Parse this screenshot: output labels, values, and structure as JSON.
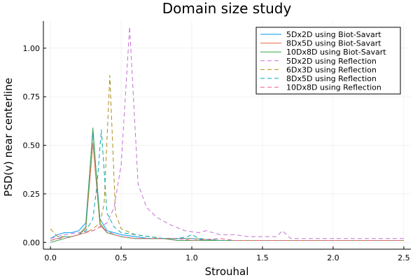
{
  "chart_data": {
    "type": "line",
    "title": "Domain size study",
    "xlabel": "Strouhal",
    "ylabel": "PSD(v) near centerline",
    "xlim": [
      -0.05,
      2.55
    ],
    "ylim": [
      -0.035,
      1.14
    ],
    "xticks": [
      0.0,
      0.5,
      1.0,
      1.5,
      2.0,
      2.5
    ],
    "xtick_labels": [
      "0.0",
      "0.5",
      "1.0",
      "1.5",
      "2.0",
      "2.5"
    ],
    "yticks": [
      0.0,
      0.25,
      0.5,
      0.75,
      1.0
    ],
    "ytick_labels": [
      "0.00",
      "0.25",
      "0.50",
      "0.75",
      "1.00"
    ],
    "grid": true,
    "legend_position": "top-right",
    "series": [
      {
        "name": "5Dx2D using Biot-Savart",
        "color": "#009af9",
        "dash": "solid",
        "points": [
          [
            0.0,
            0.02
          ],
          [
            0.05,
            0.04
          ],
          [
            0.1,
            0.05
          ],
          [
            0.15,
            0.05
          ],
          [
            0.2,
            0.06
          ],
          [
            0.25,
            0.1
          ],
          [
            0.3,
            0.57
          ],
          [
            0.35,
            0.12
          ],
          [
            0.4,
            0.06
          ],
          [
            0.45,
            0.05
          ],
          [
            0.5,
            0.04
          ],
          [
            0.6,
            0.03
          ],
          [
            0.7,
            0.02
          ],
          [
            0.8,
            0.02
          ],
          [
            0.9,
            0.02
          ],
          [
            1.0,
            0.02
          ],
          [
            1.2,
            0.01
          ],
          [
            1.4,
            0.01
          ],
          [
            1.6,
            0.01
          ],
          [
            1.8,
            0.01
          ],
          [
            2.0,
            0.01
          ],
          [
            2.2,
            0.01
          ],
          [
            2.5,
            0.01
          ]
        ]
      },
      {
        "name": "8Dx5D using Biot-Savart",
        "color": "#e26f46",
        "dash": "solid",
        "points": [
          [
            0.0,
            0.01
          ],
          [
            0.05,
            0.02
          ],
          [
            0.1,
            0.03
          ],
          [
            0.15,
            0.03
          ],
          [
            0.2,
            0.04
          ],
          [
            0.25,
            0.07
          ],
          [
            0.3,
            0.51
          ],
          [
            0.35,
            0.09
          ],
          [
            0.4,
            0.05
          ],
          [
            0.45,
            0.04
          ],
          [
            0.5,
            0.03
          ],
          [
            0.6,
            0.02
          ],
          [
            0.7,
            0.02
          ],
          [
            0.8,
            0.02
          ],
          [
            0.9,
            0.01
          ],
          [
            1.0,
            0.01
          ],
          [
            1.2,
            0.01
          ],
          [
            1.4,
            0.01
          ],
          [
            1.6,
            0.01
          ],
          [
            1.8,
            0.01
          ],
          [
            2.0,
            0.01
          ],
          [
            2.2,
            0.01
          ],
          [
            2.5,
            0.01
          ]
        ]
      },
      {
        "name": "10Dx8D using Biot-Savart",
        "color": "#3da44d",
        "dash": "solid",
        "points": [
          [
            0.0,
            0.0
          ],
          [
            0.05,
            0.01
          ],
          [
            0.1,
            0.02
          ],
          [
            0.15,
            0.03
          ],
          [
            0.2,
            0.04
          ],
          [
            0.25,
            0.08
          ],
          [
            0.3,
            0.59
          ],
          [
            0.35,
            0.1
          ],
          [
            0.4,
            0.05
          ],
          [
            0.45,
            0.04
          ],
          [
            0.5,
            0.03
          ],
          [
            0.6,
            0.02
          ],
          [
            0.7,
            0.02
          ],
          [
            0.8,
            0.02
          ],
          [
            0.9,
            0.01
          ],
          [
            1.0,
            0.01
          ],
          [
            1.2,
            0.01
          ],
          [
            1.4,
            0.01
          ],
          [
            1.6,
            0.01
          ],
          [
            1.8,
            0.01
          ],
          [
            2.0,
            0.01
          ],
          [
            2.2,
            0.01
          ],
          [
            2.5,
            0.01
          ]
        ]
      },
      {
        "name": "5Dx2D using Reflection",
        "color": "#c271d2",
        "dash": "dashed",
        "points": [
          [
            0.0,
            0.02
          ],
          [
            0.05,
            0.03
          ],
          [
            0.1,
            0.04
          ],
          [
            0.2,
            0.05
          ],
          [
            0.3,
            0.06
          ],
          [
            0.4,
            0.1
          ],
          [
            0.45,
            0.18
          ],
          [
            0.5,
            0.4
          ],
          [
            0.56,
            1.11
          ],
          [
            0.62,
            0.3
          ],
          [
            0.68,
            0.18
          ],
          [
            0.75,
            0.13
          ],
          [
            0.85,
            0.09
          ],
          [
            0.95,
            0.06
          ],
          [
            1.05,
            0.05
          ],
          [
            1.1,
            0.06
          ],
          [
            1.2,
            0.04
          ],
          [
            1.3,
            0.04
          ],
          [
            1.4,
            0.03
          ],
          [
            1.5,
            0.03
          ],
          [
            1.6,
            0.03
          ],
          [
            1.64,
            0.06
          ],
          [
            1.7,
            0.02
          ],
          [
            1.8,
            0.02
          ],
          [
            2.0,
            0.02
          ],
          [
            2.2,
            0.02
          ],
          [
            2.5,
            0.02
          ]
        ]
      },
      {
        "name": "6Dx3D using Reflection",
        "color": "#ac8d18",
        "dash": "dashed",
        "points": [
          [
            0.0,
            0.07
          ],
          [
            0.05,
            0.03
          ],
          [
            0.1,
            0.03
          ],
          [
            0.15,
            0.03
          ],
          [
            0.2,
            0.04
          ],
          [
            0.25,
            0.05
          ],
          [
            0.3,
            0.07
          ],
          [
            0.35,
            0.1
          ],
          [
            0.38,
            0.2
          ],
          [
            0.42,
            0.86
          ],
          [
            0.46,
            0.15
          ],
          [
            0.5,
            0.07
          ],
          [
            0.6,
            0.04
          ],
          [
            0.7,
            0.03
          ],
          [
            0.8,
            0.02
          ],
          [
            0.9,
            0.02
          ],
          [
            1.0,
            0.02
          ],
          [
            1.2,
            0.01
          ],
          [
            1.4,
            0.01
          ],
          [
            1.6,
            0.01
          ],
          [
            1.8,
            0.01
          ],
          [
            2.0,
            0.01
          ],
          [
            2.2,
            0.01
          ],
          [
            2.5,
            0.01
          ]
        ]
      },
      {
        "name": "8Dx5D using Reflection",
        "color": "#00a9ad",
        "dash": "dashed",
        "points": [
          [
            0.0,
            0.01
          ],
          [
            0.05,
            0.02
          ],
          [
            0.1,
            0.03
          ],
          [
            0.15,
            0.03
          ],
          [
            0.2,
            0.04
          ],
          [
            0.25,
            0.06
          ],
          [
            0.3,
            0.12
          ],
          [
            0.33,
            0.3
          ],
          [
            0.36,
            0.58
          ],
          [
            0.4,
            0.15
          ],
          [
            0.45,
            0.08
          ],
          [
            0.5,
            0.05
          ],
          [
            0.6,
            0.04
          ],
          [
            0.7,
            0.03
          ],
          [
            0.8,
            0.02
          ],
          [
            0.9,
            0.02
          ],
          [
            0.97,
            0.03
          ],
          [
            1.0,
            0.04
          ],
          [
            1.05,
            0.02
          ],
          [
            1.2,
            0.01
          ],
          [
            1.4,
            0.01
          ],
          [
            1.6,
            0.01
          ],
          [
            1.8,
            0.01
          ],
          [
            2.0,
            0.01
          ],
          [
            2.2,
            0.01
          ],
          [
            2.5,
            0.01
          ]
        ]
      },
      {
        "name": "10Dx8D using Reflection",
        "color": "#ed5d92",
        "dash": "dashed",
        "points": [
          [
            0.0,
            0.01
          ],
          [
            0.05,
            0.02
          ],
          [
            0.1,
            0.02
          ],
          [
            0.15,
            0.03
          ],
          [
            0.2,
            0.04
          ],
          [
            0.25,
            0.05
          ],
          [
            0.3,
            0.06
          ],
          [
            0.35,
            0.08
          ],
          [
            0.4,
            0.06
          ],
          [
            0.45,
            0.04
          ],
          [
            0.5,
            0.03
          ],
          [
            0.6,
            0.02
          ],
          [
            0.7,
            0.02
          ],
          [
            0.8,
            0.02
          ],
          [
            0.9,
            0.02
          ],
          [
            1.0,
            0.01
          ],
          [
            1.2,
            0.02
          ],
          [
            1.3,
            0.01
          ],
          [
            1.4,
            0.01
          ],
          [
            1.6,
            0.01
          ],
          [
            1.8,
            0.01
          ],
          [
            2.0,
            0.01
          ],
          [
            2.2,
            0.01
          ],
          [
            2.5,
            0.01
          ]
        ]
      }
    ]
  }
}
